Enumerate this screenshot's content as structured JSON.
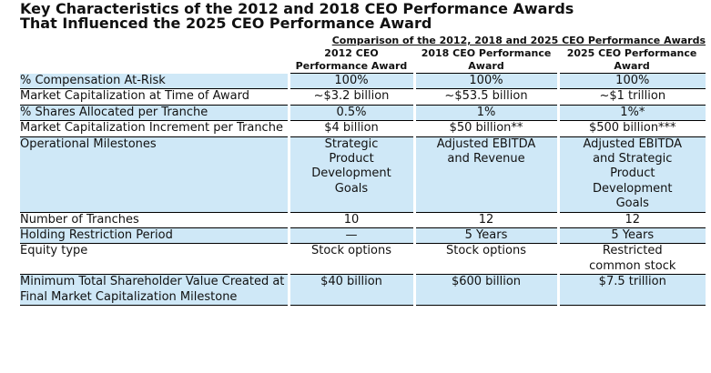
{
  "header": {
    "title_lines": [
      "Key Characteristics of the 2012 and 2018 CEO Performance Awards",
      "That Influenced the 2025 CEO Performance Award"
    ]
  },
  "table": {
    "caption": "Comparison of the 2012, 2018 and 2025 CEO Performance Awards",
    "columns": [
      "2012 CEO Performance Award",
      "2018 CEO Performance Award",
      "2025 CEO Performance Award"
    ],
    "rows": [
      {
        "label": "% Compensation At-Risk",
        "values": [
          "100%",
          "100%",
          "100%"
        ]
      },
      {
        "label": "Market Capitalization at Time of Award",
        "values": [
          "~$3.2 billion",
          "~$53.5 billion",
          "~$1 trillion"
        ]
      },
      {
        "label": "% Shares Allocated per Tranche",
        "values": [
          "0.5%",
          "1%",
          "1%*"
        ]
      },
      {
        "label": "Market Capitalization Increment per Tranche",
        "values": [
          "$4 billion",
          "$50 billion**",
          "$500 billion***"
        ]
      },
      {
        "label": "Operational Milestones",
        "values": [
          "Strategic Product Development Goals",
          "Adjusted EBITDA and Revenue",
          "Adjusted EBITDA and Strategic Product Development Goals"
        ]
      },
      {
        "label": "Number of Tranches",
        "values": [
          "10",
          "12",
          "12"
        ]
      },
      {
        "label": "Holding Restriction Period",
        "values": [
          "—",
          "5 Years",
          "5 Years"
        ]
      },
      {
        "label": "Equity type",
        "values": [
          "Stock options",
          "Stock options",
          "Restricted common stock"
        ]
      },
      {
        "label": "Minimum Total Shareholder Value Created at Final Market Capitalization Milestone",
        "values": [
          "$40 billion",
          "$600 billion",
          "$7.5 trillion"
        ]
      }
    ]
  }
}
